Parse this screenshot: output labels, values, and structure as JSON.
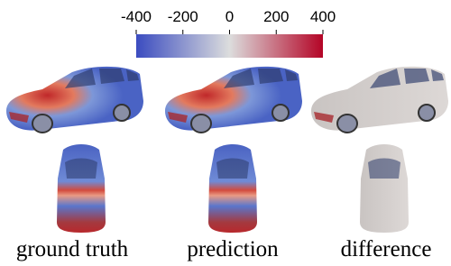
{
  "colorbar": {
    "lim": [
      -400,
      400
    ],
    "ticks": [
      -400,
      -200,
      0,
      200,
      400
    ],
    "colors": [
      "#3b4cc0",
      "#dcdddd",
      "#b40426"
    ]
  },
  "panels": [
    {
      "label": "ground truth"
    },
    {
      "label": "prediction"
    },
    {
      "label": "difference"
    }
  ]
}
